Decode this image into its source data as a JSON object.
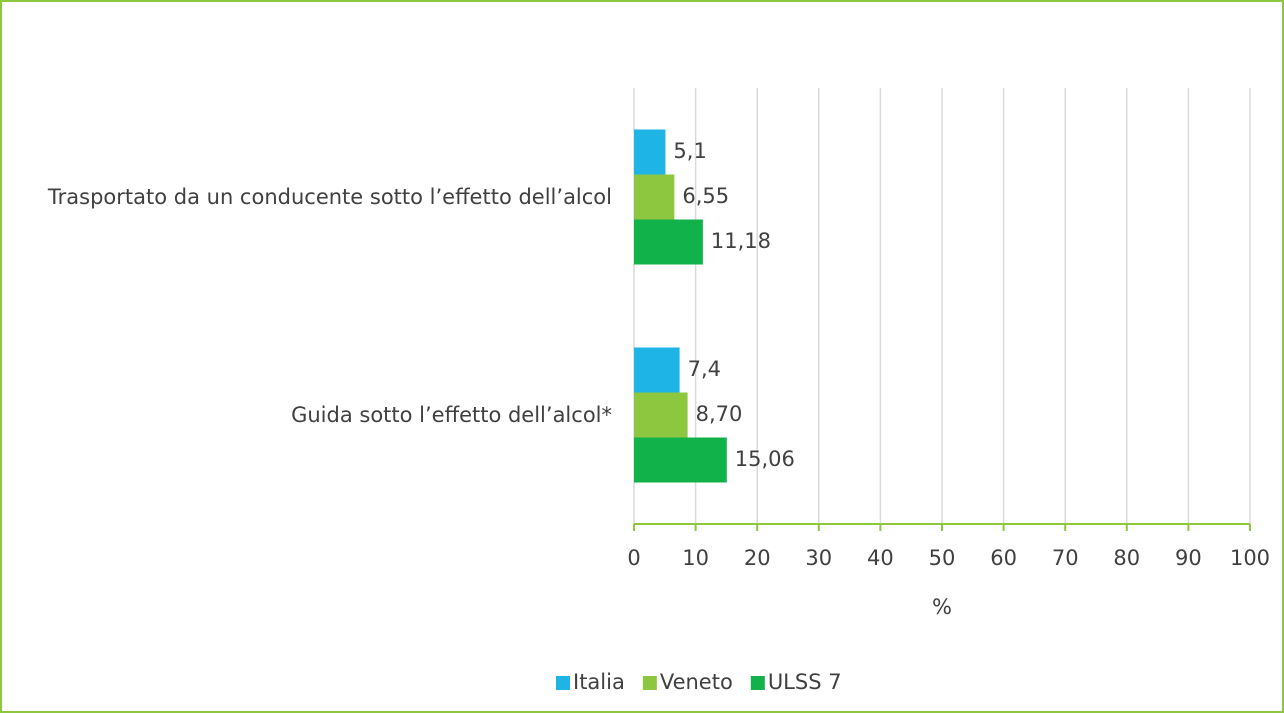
{
  "chart_data": {
    "type": "bar",
    "orientation": "horizontal",
    "categories": [
      "Trasportato da un conducente sotto l’effetto dell’alcol",
      "Guida sotto l’effetto dell’alcol*"
    ],
    "series": [
      {
        "name": "Italia",
        "color": "#1fb4e6",
        "values": [
          5.1,
          7.4
        ],
        "value_labels": [
          "5,1",
          "7,4"
        ]
      },
      {
        "name": "Veneto",
        "color": "#8dc63f",
        "values": [
          6.55,
          8.7
        ],
        "value_labels": [
          "6,55",
          "8,70"
        ]
      },
      {
        "name": "ULSS 7",
        "color": "#12b24b",
        "values": [
          11.18,
          15.06
        ],
        "value_labels": [
          "11,18",
          "15,06"
        ]
      }
    ],
    "xlabel": "%",
    "xlim": [
      0,
      100
    ],
    "xticks": [
      0,
      10,
      20,
      30,
      40,
      50,
      60,
      70,
      80,
      90,
      100
    ],
    "grid": true,
    "legend": "bottom"
  }
}
